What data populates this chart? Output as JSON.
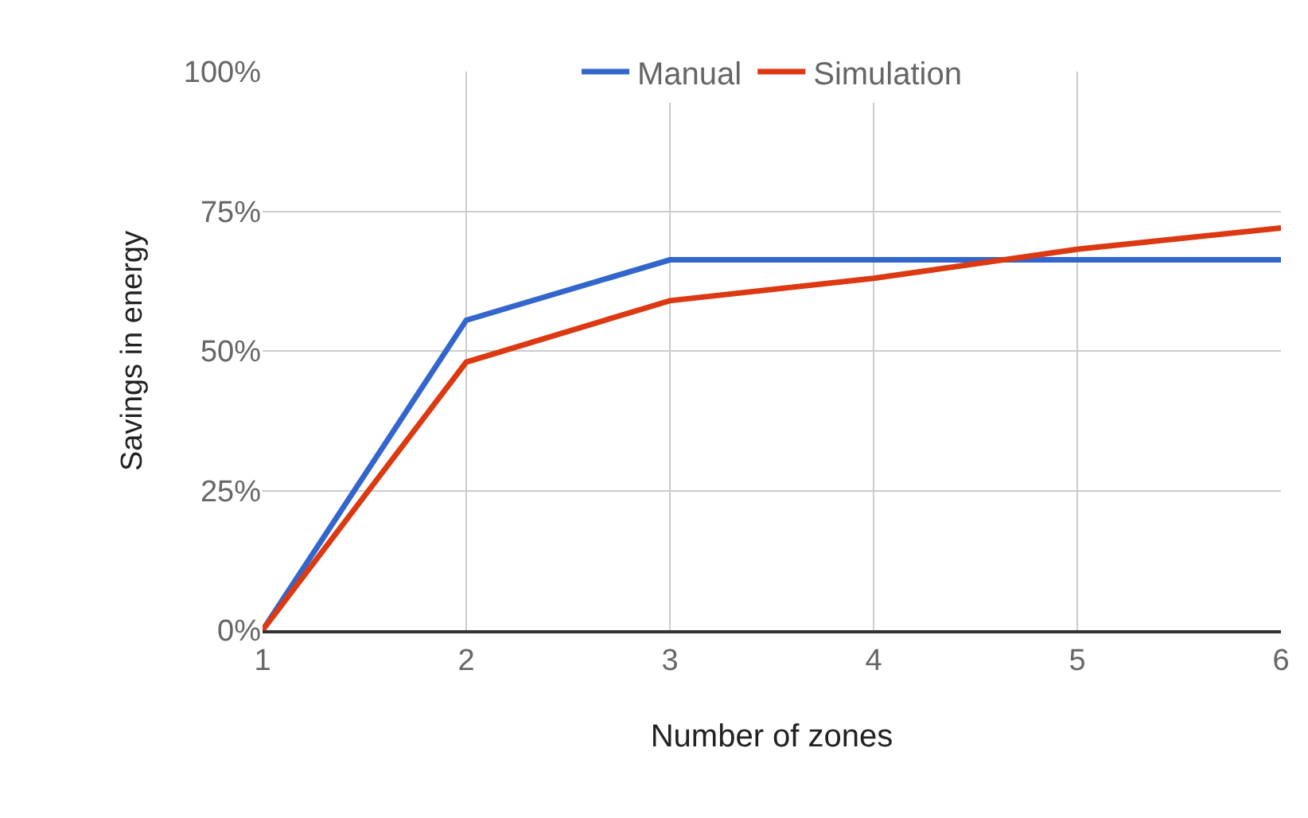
{
  "chart_data": {
    "type": "line",
    "xlabel": "Number of zones",
    "ylabel": "Savings in energy",
    "x": [
      1,
      2,
      3,
      4,
      5,
      6
    ],
    "series": [
      {
        "name": "Manual",
        "color": "#3366cc",
        "values": [
          0,
          55.5,
          66.3,
          66.3,
          66.3,
          66.3
        ]
      },
      {
        "name": "Simulation",
        "color": "#dc3912",
        "values": [
          0,
          48.0,
          59.0,
          63.0,
          68.2,
          72.0
        ]
      }
    ],
    "xlim": [
      1,
      6
    ],
    "xticks": [
      1,
      2,
      3,
      4,
      5,
      6
    ],
    "ylim": [
      0,
      100
    ],
    "yticks": [
      {
        "value": 0,
        "label": "0%"
      },
      {
        "value": 25,
        "label": "25%"
      },
      {
        "value": 50,
        "label": "50%"
      },
      {
        "value": 75,
        "label": "75%"
      },
      {
        "value": 100,
        "label": "100%"
      }
    ],
    "grid": true,
    "legend": "top",
    "marker": "none",
    "line_style": "solid"
  }
}
